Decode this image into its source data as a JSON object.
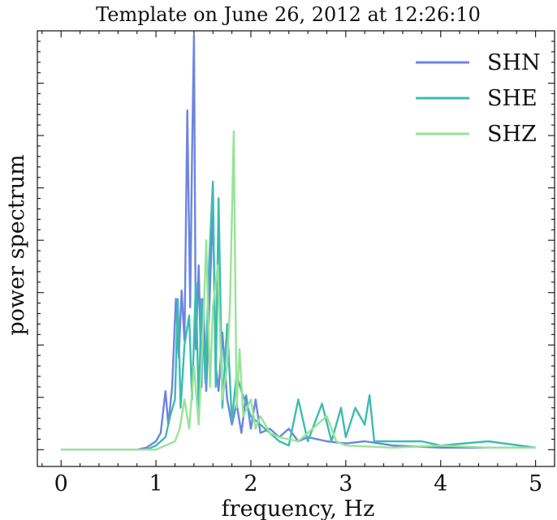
{
  "chart_data": {
    "type": "line",
    "title": "Template on June 26, 2012 at 12:26:10",
    "xlabel": "frequency, Hz",
    "ylabel": "power spectrum",
    "xlim": [
      -0.25,
      5.2
    ],
    "ylim": [
      -0.04,
      1.0
    ],
    "x_ticks": [
      0,
      1,
      2,
      3,
      4,
      5
    ],
    "x_tick_labels": [
      "0",
      "1",
      "2",
      "3",
      "4",
      "5"
    ],
    "y_tick_labels_visible": false,
    "grid": false,
    "legend": {
      "position": "top-right"
    },
    "series": [
      {
        "name": "SHN",
        "color": "#6c85e0",
        "points": [
          [
            0,
            0
          ],
          [
            0.8,
            0
          ],
          [
            0.9,
            0.005
          ],
          [
            1.0,
            0.02
          ],
          [
            1.05,
            0.04
          ],
          [
            1.1,
            0.14
          ],
          [
            1.13,
            0.06
          ],
          [
            1.17,
            0.15
          ],
          [
            1.21,
            0.36
          ],
          [
            1.24,
            0.22
          ],
          [
            1.27,
            0.38
          ],
          [
            1.3,
            0.26
          ],
          [
            1.33,
            0.81
          ],
          [
            1.36,
            0.34
          ],
          [
            1.38,
            0.7
          ],
          [
            1.4,
            0.99
          ],
          [
            1.42,
            0.24
          ],
          [
            1.45,
            0.44
          ],
          [
            1.48,
            0.15
          ],
          [
            1.5,
            0.36
          ],
          [
            1.53,
            0.14
          ],
          [
            1.56,
            0.33
          ],
          [
            1.6,
            0.58
          ],
          [
            1.63,
            0.2
          ],
          [
            1.66,
            0.14
          ],
          [
            1.7,
            0.28
          ],
          [
            1.75,
            0.12
          ],
          [
            1.8,
            0.06
          ],
          [
            1.85,
            0.11
          ],
          [
            1.9,
            0.04
          ],
          [
            1.95,
            0.13
          ],
          [
            2.0,
            0.05
          ],
          [
            2.05,
            0.12
          ],
          [
            2.1,
            0.04
          ],
          [
            2.2,
            0.05
          ],
          [
            2.3,
            0.03
          ],
          [
            2.4,
            0.05
          ],
          [
            2.5,
            0.02
          ],
          [
            2.6,
            0.03
          ],
          [
            2.8,
            0.02
          ],
          [
            3.0,
            0.015
          ],
          [
            3.2,
            0.02
          ],
          [
            3.5,
            0.01
          ],
          [
            4.0,
            0.005
          ],
          [
            4.5,
            0.005
          ],
          [
            5.0,
            0.005
          ]
        ]
      },
      {
        "name": "SHE",
        "color": "#3cbcb0",
        "points": [
          [
            0,
            0
          ],
          [
            0.9,
            0
          ],
          [
            1.0,
            0.01
          ],
          [
            1.1,
            0.03
          ],
          [
            1.15,
            0.08
          ],
          [
            1.2,
            0.12
          ],
          [
            1.23,
            0.36
          ],
          [
            1.26,
            0.1
          ],
          [
            1.3,
            0.25
          ],
          [
            1.35,
            0.32
          ],
          [
            1.38,
            0.12
          ],
          [
            1.42,
            0.4
          ],
          [
            1.45,
            0.1
          ],
          [
            1.48,
            0.36
          ],
          [
            1.52,
            0.16
          ],
          [
            1.56,
            0.45
          ],
          [
            1.6,
            0.64
          ],
          [
            1.63,
            0.15
          ],
          [
            1.66,
            0.6
          ],
          [
            1.7,
            0.1
          ],
          [
            1.75,
            0.3
          ],
          [
            1.8,
            0.07
          ],
          [
            1.85,
            0.18
          ],
          [
            1.9,
            0.14
          ],
          [
            2.0,
            0.08
          ],
          [
            2.1,
            0.06
          ],
          [
            2.2,
            0.04
          ],
          [
            2.3,
            0.02
          ],
          [
            2.4,
            0.01
          ],
          [
            2.5,
            0.12
          ],
          [
            2.6,
            0.02
          ],
          [
            2.7,
            0.08
          ],
          [
            2.75,
            0.11
          ],
          [
            2.85,
            0.02
          ],
          [
            2.95,
            0.1
          ],
          [
            3.0,
            0.03
          ],
          [
            3.1,
            0.1
          ],
          [
            3.2,
            0.06
          ],
          [
            3.25,
            0.13
          ],
          [
            3.3,
            0.02
          ],
          [
            3.5,
            0.02
          ],
          [
            3.8,
            0.02
          ],
          [
            4.0,
            0.01
          ],
          [
            4.5,
            0.02
          ],
          [
            5.0,
            0.005
          ]
        ]
      },
      {
        "name": "SHZ",
        "color": "#98e398",
        "points": [
          [
            0,
            0
          ],
          [
            1.0,
            0
          ],
          [
            1.1,
            0.01
          ],
          [
            1.2,
            0.02
          ],
          [
            1.25,
            0.05
          ],
          [
            1.3,
            0.12
          ],
          [
            1.35,
            0.05
          ],
          [
            1.4,
            0.2
          ],
          [
            1.45,
            0.06
          ],
          [
            1.5,
            0.3
          ],
          [
            1.53,
            0.5
          ],
          [
            1.57,
            0.15
          ],
          [
            1.6,
            0.34
          ],
          [
            1.65,
            0.44
          ],
          [
            1.7,
            0.12
          ],
          [
            1.75,
            0.2
          ],
          [
            1.78,
            0.35
          ],
          [
            1.82,
            0.76
          ],
          [
            1.85,
            0.1
          ],
          [
            1.88,
            0.24
          ],
          [
            1.92,
            0.08
          ],
          [
            2.0,
            0.12
          ],
          [
            2.05,
            0.05
          ],
          [
            2.1,
            0.08
          ],
          [
            2.2,
            0.04
          ],
          [
            2.3,
            0.03
          ],
          [
            2.5,
            0.02
          ],
          [
            2.8,
            0.08
          ],
          [
            2.9,
            0.02
          ],
          [
            3.0,
            0.01
          ],
          [
            3.5,
            0.005
          ],
          [
            4.0,
            0.01
          ],
          [
            4.5,
            0.005
          ],
          [
            5.0,
            0.005
          ]
        ]
      }
    ]
  }
}
